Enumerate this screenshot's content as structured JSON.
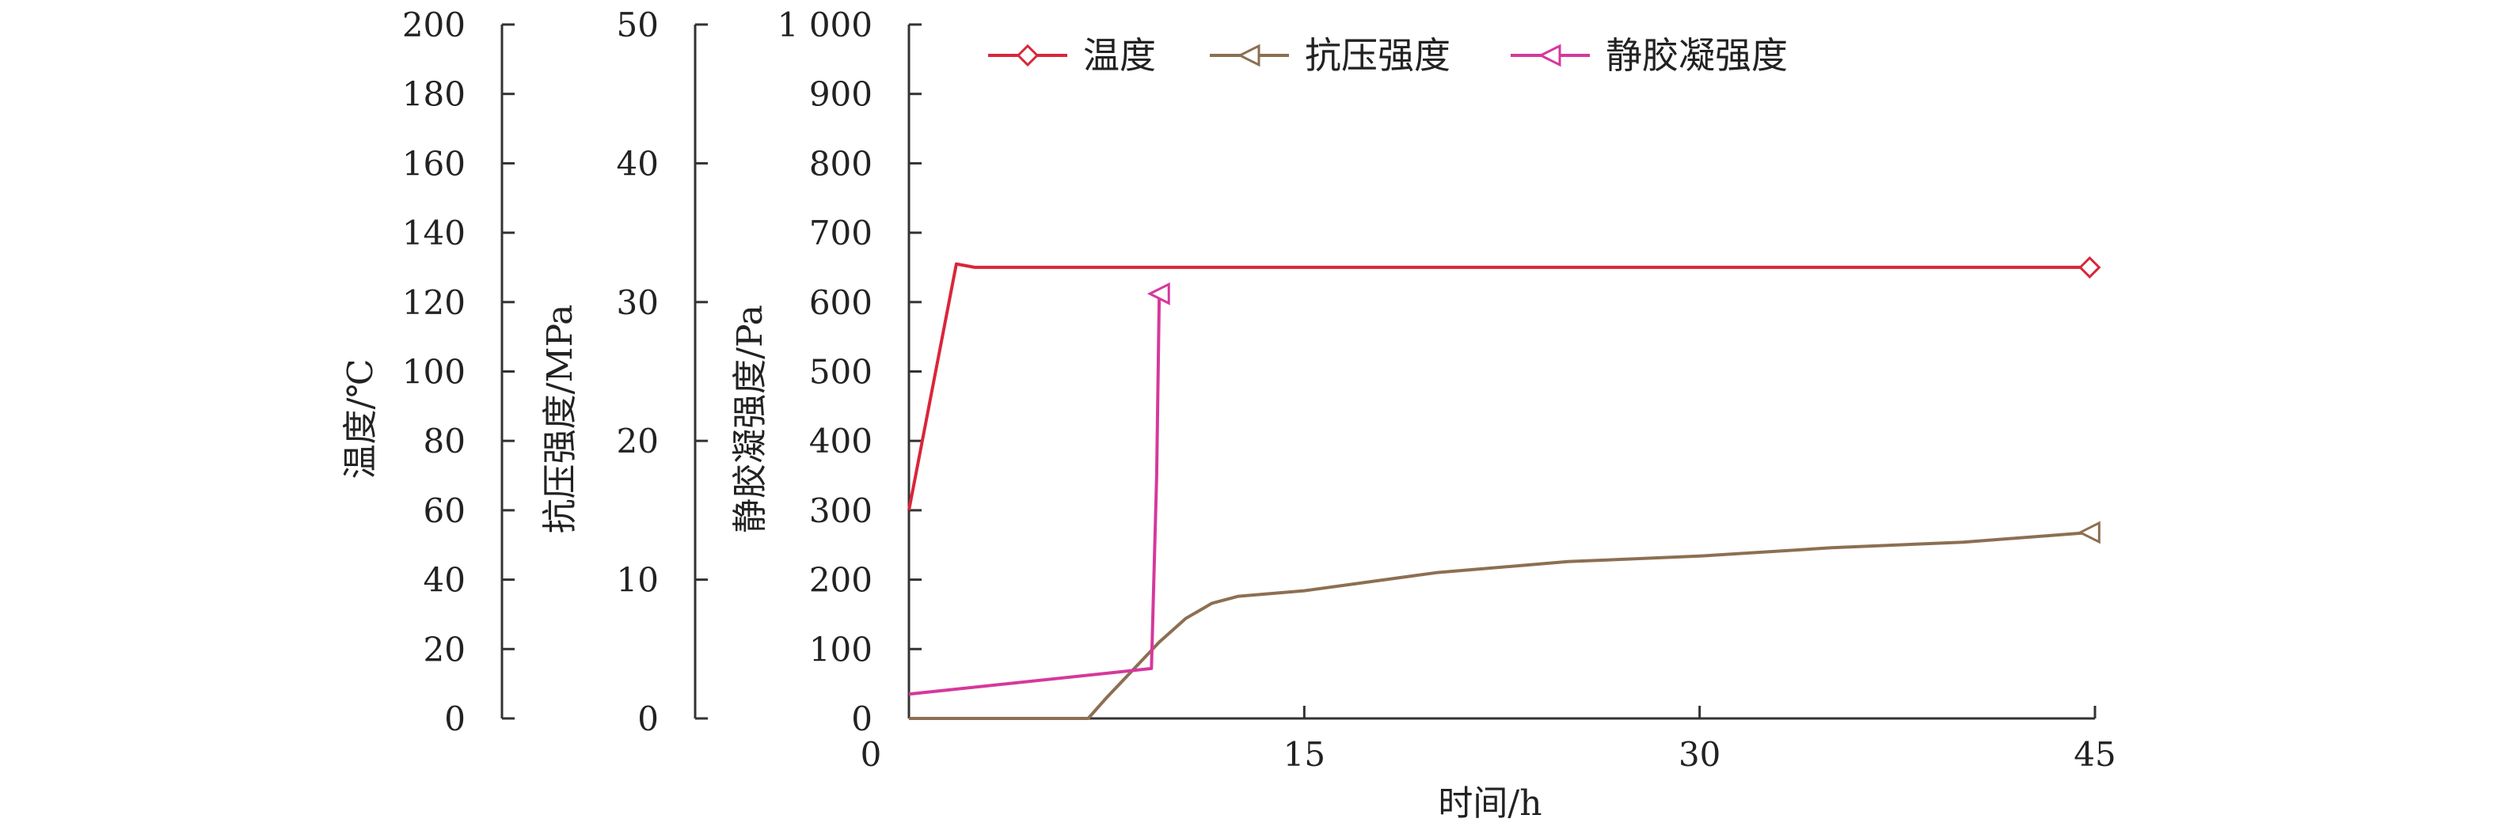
{
  "chart_data": {
    "type": "line",
    "xlabel": "时间/h",
    "x_ticks": [
      "0",
      "15",
      "30",
      "45"
    ],
    "xlim": [
      0,
      45
    ],
    "axes": [
      {
        "label": "温度/℃",
        "ylim": [
          0,
          200
        ],
        "ticks": [
          "0",
          "20",
          "40",
          "60",
          "80",
          "100",
          "120",
          "140",
          "160",
          "180",
          "200"
        ]
      },
      {
        "label": "抗压强度/MPa",
        "ylim": [
          0,
          50
        ],
        "ticks": [
          "0",
          "10",
          "20",
          "30",
          "40",
          "50"
        ]
      },
      {
        "label": "静胶凝强度/Pa",
        "ylim": [
          0,
          1000
        ],
        "ticks": [
          "0",
          "100",
          "200",
          "300",
          "400",
          "500",
          "600",
          "700",
          "800",
          "900",
          "1 000"
        ]
      }
    ],
    "legend_position": "top",
    "grid": false,
    "series": [
      {
        "name": "温度",
        "axis": 0,
        "color": "#d9263a",
        "marker": "diamond",
        "x": [
          0,
          1.8,
          2.5,
          6,
          15,
          30,
          44.8
        ],
        "y": [
          60,
          131,
          130,
          130,
          130,
          130,
          130
        ]
      },
      {
        "name": "抗压强度",
        "axis": 1,
        "color": "#8c6f52",
        "marker": "triangle-left",
        "x": [
          0,
          0.5,
          2,
          5,
          6.8,
          7.5,
          8.5,
          9.5,
          10.5,
          11.5,
          12.5,
          15,
          20,
          25,
          30,
          35,
          40,
          44.8
        ],
        "y": [
          0,
          0,
          0,
          0,
          0,
          1.5,
          3.5,
          5.5,
          7.2,
          8.3,
          8.8,
          9.2,
          10.5,
          11.3,
          11.7,
          12.3,
          12.7,
          13.4
        ]
      },
      {
        "name": "静胶凝强度",
        "axis": 2,
        "color": "#d6389c",
        "marker": "triangle-left",
        "x": [
          0,
          9.2,
          9.4,
          9.5
        ],
        "y": [
          35,
          72,
          350,
          612
        ]
      }
    ]
  }
}
